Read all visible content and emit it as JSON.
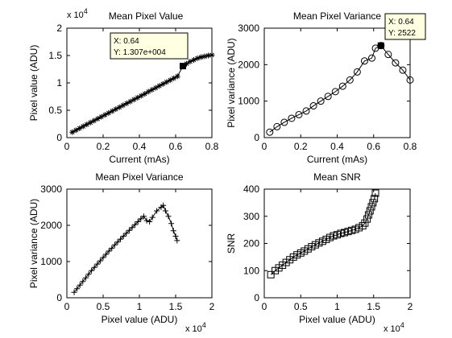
{
  "chart_data": [
    {
      "type": "line",
      "title": "Mean Pixel Value",
      "xlabel": "Current (mAs)",
      "ylabel": "Pixel value (ADU)",
      "xlim": [
        0,
        0.8
      ],
      "ylim": [
        0,
        20000
      ],
      "xticks": [
        "0",
        "0.2",
        "0.4",
        "0.6",
        "0.8"
      ],
      "yticks": [
        "0",
        "0.5",
        "1",
        "1.5",
        "2"
      ],
      "y_exponent": "4",
      "marker": "star",
      "series": [
        {
          "x": [
            0.03,
            0.05,
            0.07,
            0.09,
            0.11,
            0.13,
            0.15,
            0.17,
            0.19,
            0.21,
            0.23,
            0.25,
            0.27,
            0.29,
            0.31,
            0.33,
            0.35,
            0.37,
            0.39,
            0.41,
            0.43,
            0.45,
            0.47,
            0.49,
            0.51,
            0.53,
            0.55,
            0.57,
            0.59,
            0.61,
            0.64,
            0.66,
            0.68,
            0.7,
            0.72,
            0.74,
            0.76,
            0.78,
            0.8
          ],
          "y": [
            1000,
            1350,
            1700,
            2050,
            2400,
            2750,
            3100,
            3450,
            3800,
            4150,
            4500,
            4850,
            5200,
            5550,
            5900,
            6250,
            6600,
            6950,
            7300,
            7650,
            8000,
            8400,
            8750,
            9100,
            9450,
            9800,
            10150,
            10500,
            10850,
            11200,
            13070,
            13500,
            13900,
            14200,
            14500,
            14700,
            14850,
            15000,
            15100
          ]
        }
      ],
      "datatip": {
        "x_label": "X: 0.64",
        "y_label": "Y: 1.307e+004",
        "x": 0.64,
        "y": 13070
      }
    },
    {
      "type": "line",
      "title": "Mean Pixel Variance",
      "xlabel": "Current (mAs)",
      "ylabel": "Pixel variance (ADU)",
      "xlim": [
        0,
        0.8
      ],
      "ylim": [
        0,
        3000
      ],
      "xticks": [
        "0",
        "0.2",
        "0.4",
        "0.6",
        "0.8"
      ],
      "yticks": [
        "0",
        "1000",
        "2000",
        "3000"
      ],
      "marker": "circle",
      "series": [
        {
          "x": [
            0.03,
            0.07,
            0.11,
            0.15,
            0.19,
            0.23,
            0.27,
            0.31,
            0.35,
            0.39,
            0.43,
            0.47,
            0.51,
            0.55,
            0.59,
            0.61,
            0.64,
            0.68,
            0.72,
            0.76,
            0.8
          ],
          "y": [
            150,
            300,
            420,
            530,
            630,
            730,
            870,
            1000,
            1130,
            1260,
            1410,
            1580,
            1800,
            2100,
            2180,
            2450,
            2522,
            2280,
            2050,
            1850,
            1580
          ]
        }
      ],
      "datatip": {
        "x_label": "X: 0.64",
        "y_label": "Y: 2522",
        "x": 0.64,
        "y": 2522
      }
    },
    {
      "type": "line",
      "title": "Mean Pixel Variance",
      "xlabel": "Pixel value (ADU)",
      "ylabel": "Pixel variance (ADU)",
      "xlim": [
        0,
        20000
      ],
      "ylim": [
        0,
        3000
      ],
      "xticks": [
        "0",
        "0.5",
        "1",
        "1.5",
        "2"
      ],
      "yticks": [
        "0",
        "1000",
        "2000",
        "3000"
      ],
      "x_exponent": "4",
      "marker": "plus",
      "series": [
        {
          "x": [
            1000,
            1400,
            1800,
            2200,
            2600,
            3000,
            3400,
            3800,
            4200,
            4600,
            5000,
            5400,
            5800,
            6200,
            6600,
            7000,
            7400,
            7800,
            8200,
            8600,
            9000,
            9400,
            9800,
            10200,
            10600,
            11000,
            11400,
            11800,
            12400,
            13000,
            13300,
            13600,
            14000,
            14400,
            14700,
            15000,
            15200
          ],
          "y": [
            150,
            250,
            350,
            450,
            550,
            650,
            750,
            840,
            930,
            1020,
            1110,
            1200,
            1290,
            1370,
            1460,
            1540,
            1620,
            1700,
            1780,
            1860,
            1940,
            2020,
            2100,
            2180,
            2250,
            2130,
            2100,
            2220,
            2400,
            2500,
            2550,
            2400,
            2250,
            2050,
            1850,
            1700,
            1580
          ]
        }
      ]
    },
    {
      "type": "line",
      "title": "Mean SNR",
      "xlabel": "Pixel value (ADU)",
      "ylabel": "SNR",
      "xlim": [
        0,
        20000
      ],
      "ylim": [
        0,
        400
      ],
      "xticks": [
        "0",
        "0.5",
        "1",
        "1.5",
        "2"
      ],
      "yticks": [
        "0",
        "100",
        "200",
        "300",
        "400"
      ],
      "x_exponent": "4",
      "marker": "square",
      "series": [
        {
          "x": [
            900,
            1500,
            2000,
            2500,
            3000,
            3500,
            4000,
            4500,
            5000,
            5500,
            6000,
            6500,
            7000,
            7500,
            8000,
            8500,
            9000,
            9500,
            10000,
            10500,
            11000,
            11500,
            12000,
            12500,
            13000,
            13500,
            13800,
            14100,
            14300,
            14500,
            14700,
            14900,
            15100,
            15250
          ],
          "y": [
            85,
            100,
            110,
            120,
            130,
            140,
            150,
            158,
            165,
            172,
            180,
            188,
            195,
            202,
            208,
            215,
            222,
            228,
            232,
            237,
            240,
            244,
            248,
            252,
            258,
            265,
            275,
            290,
            305,
            320,
            335,
            350,
            365,
            385
          ]
        }
      ]
    }
  ]
}
